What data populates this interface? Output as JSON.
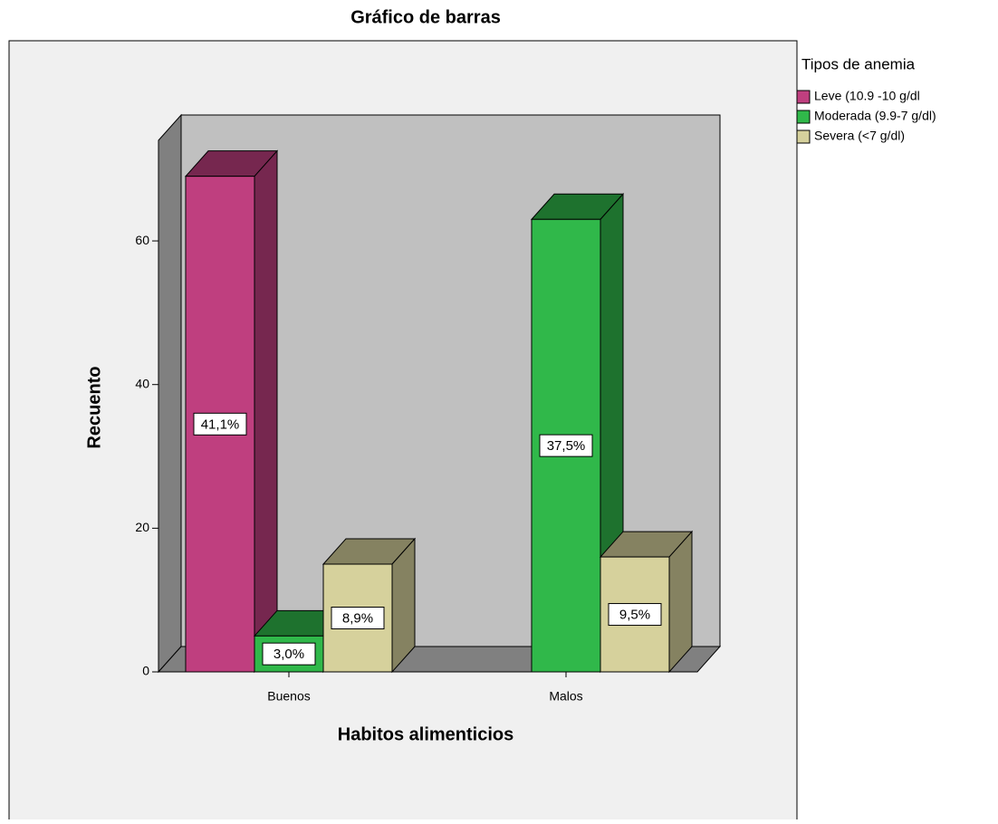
{
  "chart_data": {
    "type": "bar3d",
    "title": "Gráfico de barras",
    "x_label": "Habitos alimenticios",
    "y_label": "Recuento",
    "legend_title": "Tipos de anemia",
    "legend": "right",
    "categories": [
      "Buenos",
      "Malos"
    ],
    "series": [
      {
        "name": "Leve (10.9 -10 g/dl",
        "color": "#bf3f7f",
        "values": [
          69,
          null
        ],
        "value_labels": [
          "41,1%",
          null
        ]
      },
      {
        "name": "Moderada (9.9-7 g/dl)",
        "color": "#30b84a",
        "values": [
          5,
          63
        ],
        "value_labels": [
          "3,0%",
          "37,5%"
        ]
      },
      {
        "name": "Severa (<7 g/dl)",
        "color": "#d6d19c",
        "values": [
          15,
          16
        ],
        "value_labels": [
          "8,9%",
          "9,5%"
        ]
      }
    ],
    "ylim": [
      0,
      74
    ],
    "yticks": [
      0,
      20,
      40,
      60
    ]
  }
}
